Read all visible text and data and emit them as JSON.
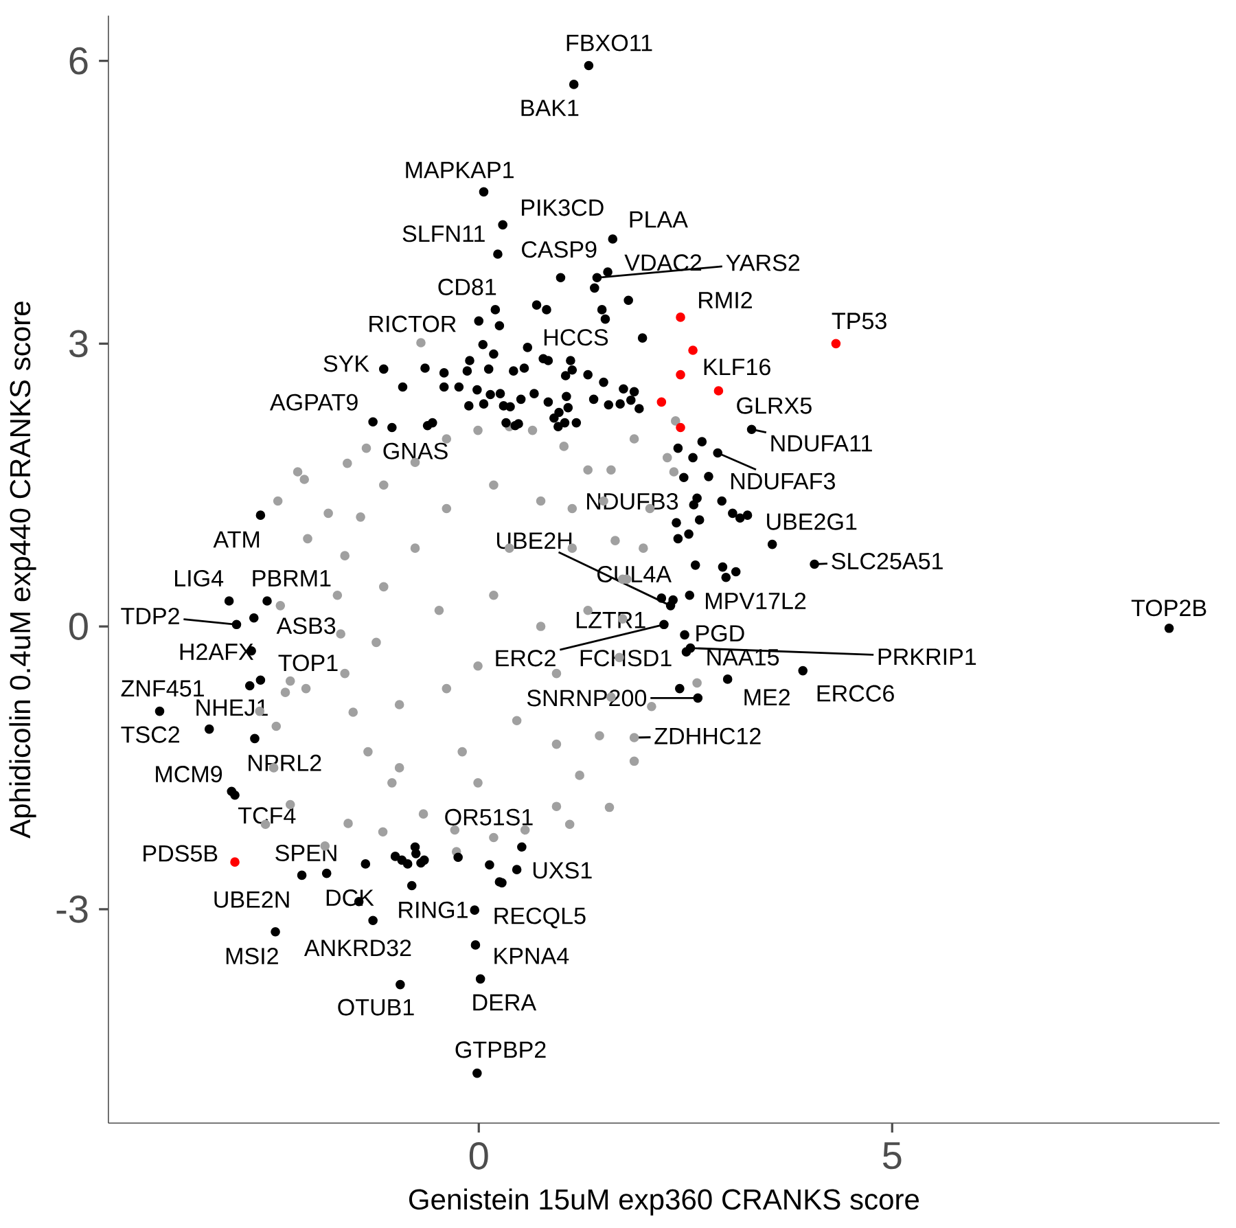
{
  "chart_data": {
    "type": "scatter",
    "xlabel": "Genistein 15uM exp360 CRANKS score",
    "ylabel": "Aphidicolin 0.4uM exp440 CRANKS score",
    "xlim": [
      -4.48,
      8.96
    ],
    "ylim": [
      -5.27,
      6.48
    ],
    "xticks": [
      0,
      5
    ],
    "yticks": [
      -3,
      0,
      3,
      6
    ],
    "marker": "circle",
    "series": [
      {
        "color": "#a0a0a0",
        "x": [
          -0.7,
          -1.36,
          -1.59,
          -2.19,
          -2.11,
          -2.07,
          -2.43,
          -1.82,
          -2.4,
          -2.28,
          -2.34,
          -2.09,
          -2.65,
          -2.45,
          -2.48,
          -2.28,
          -2.58,
          -1.86,
          -1.58,
          -1.16,
          1.1,
          1.58,
          1.88,
          1.88,
          2.09,
          2.64,
          2.36,
          2.28,
          2.38,
          1.88,
          1.6,
          2.07,
          1.99,
          1.79,
          -0.27,
          -0.01,
          -0.39,
          -0.77,
          -1.15,
          -1.43,
          -1.62,
          -1.71,
          -1.67,
          -1.62,
          -1.52,
          -1.34,
          -1.05,
          -0.67,
          -0.29,
          0.18,
          0.56,
          0.94,
          1.22,
          1.46,
          1.6,
          1.7,
          1.74,
          1.74,
          1.65,
          1.51,
          1.32,
          1.03,
          0.65,
          0.37,
          -0.77,
          -0.39,
          0.18,
          0.75,
          1.13,
          1.32,
          0.94,
          0.46,
          -0.2,
          -0.96,
          -1.24,
          -1.15,
          -0.48,
          0.18,
          0.75,
          -0.01,
          -0.39,
          0.37,
          -0.96,
          0.94,
          -0.01,
          1.13
        ],
        "values": [
          3.01,
          1.89,
          1.73,
          1.64,
          1.56,
          0.93,
          1.33,
          1.2,
          0.22,
          -0.58,
          -0.7,
          -0.66,
          -0.9,
          -1.06,
          -1.5,
          -1.89,
          -2.1,
          -2.33,
          -2.09,
          -2.18,
          -2.1,
          -1.92,
          -1.43,
          -1.18,
          -0.85,
          -0.6,
          1.64,
          1.79,
          2.18,
          1.99,
          1.66,
          1.25,
          0.83,
          0.5,
          -2.39,
          2.08,
          1.99,
          1.74,
          1.5,
          1.16,
          0.75,
          0.33,
          -0.08,
          -0.5,
          -0.91,
          -1.33,
          -1.66,
          -1.99,
          -2.16,
          -2.24,
          -2.16,
          -1.91,
          -1.58,
          -1.16,
          -0.75,
          -0.33,
          0.08,
          0.5,
          0.91,
          1.33,
          1.66,
          1.91,
          2.08,
          2.12,
          0.83,
          1.25,
          1.5,
          1.33,
          0.83,
          0.17,
          -0.5,
          -1.0,
          -1.33,
          -0.83,
          -0.17,
          0.42,
          0.17,
          0.33,
          0.0,
          -0.42,
          -0.66,
          0.83,
          -1.5,
          -1.25,
          -1.66,
          1.25
        ]
      },
      {
        "color": "#000000",
        "x": [
          1.33,
          1.15,
          0.06,
          0.29,
          0.23,
          1.62,
          1.56,
          1.43,
          1.4,
          0.99,
          1.49,
          1.53,
          1.81,
          0.7,
          0.82,
          0.2,
          0.0,
          0.25,
          1.98,
          0.59,
          0.05,
          0.18,
          -0.11,
          -0.65,
          -1.15,
          -0.92,
          -0.42,
          -0.14,
          0.12,
          0.42,
          0.55,
          0.78,
          0.84,
          1.11,
          1.13,
          1.05,
          1.32,
          1.51,
          1.75,
          1.88,
          -0.42,
          -0.24,
          -0.02,
          0.14,
          0.26,
          0.06,
          -0.12,
          0.3,
          0.38,
          0.51,
          0.67,
          0.84,
          1.06,
          1.08,
          0.97,
          1.04,
          0.96,
          0.91,
          0.33,
          0.44,
          0.48,
          -0.56,
          -0.62,
          -1.28,
          -1.05,
          1.39,
          1.57,
          1.71,
          1.84,
          1.94,
          1.18,
          2.41,
          2.7,
          2.89,
          2.59,
          2.48,
          2.78,
          2.64,
          2.94,
          2.6,
          3.07,
          3.16,
          3.25,
          2.67,
          2.39,
          2.54,
          2.41,
          3.55,
          2.62,
          2.95,
          3.11,
          2.99,
          4.06,
          2.55,
          2.35,
          2.32,
          2.21,
          2.24,
          2.49,
          2.56,
          2.51,
          3.01,
          2.43,
          2.65,
          3.92,
          -2.64,
          -3.02,
          -2.56,
          -2.72,
          -2.93,
          -2.75,
          -2.64,
          -2.77,
          -3.86,
          -3.26,
          -2.71,
          -2.99,
          -2.95,
          -2.14,
          -1.84,
          -1.37,
          -1.45,
          -1.28,
          -2.46,
          -1.01,
          -0.93,
          -0.86,
          -0.76,
          -0.7,
          -0.66,
          -0.81,
          -0.77,
          -0.25,
          0.13,
          0.25,
          0.28,
          0.46,
          0.52,
          -0.05,
          -0.04,
          0.02,
          -0.95,
          -0.02,
          8.35,
          3.3
        ],
        "values": [
          5.95,
          5.75,
          4.61,
          4.26,
          3.95,
          4.11,
          3.76,
          3.7,
          3.59,
          3.7,
          3.36,
          3.26,
          3.46,
          3.41,
          3.36,
          3.36,
          3.24,
          3.19,
          3.06,
          2.96,
          2.99,
          2.89,
          2.82,
          2.74,
          2.73,
          2.54,
          2.69,
          2.71,
          2.73,
          2.71,
          2.74,
          2.84,
          2.82,
          2.82,
          2.72,
          2.66,
          2.67,
          2.59,
          2.52,
          2.49,
          2.54,
          2.54,
          2.51,
          2.46,
          2.47,
          2.36,
          2.34,
          2.34,
          2.33,
          2.41,
          2.47,
          2.38,
          2.44,
          2.32,
          2.27,
          2.16,
          2.12,
          2.21,
          2.16,
          2.13,
          2.15,
          2.16,
          2.13,
          2.17,
          2.11,
          2.41,
          2.35,
          2.36,
          2.4,
          2.31,
          2.16,
          1.89,
          1.96,
          1.84,
          1.79,
          1.58,
          1.59,
          1.36,
          1.33,
          1.29,
          1.2,
          1.15,
          1.18,
          1.13,
          1.1,
          0.98,
          0.93,
          0.87,
          0.65,
          0.63,
          0.58,
          0.52,
          0.66,
          0.33,
          0.28,
          0.22,
          0.3,
          0.02,
          -0.09,
          -0.23,
          -0.27,
          -0.56,
          -0.66,
          -0.76,
          -0.47,
          1.18,
          0.27,
          0.27,
          0.09,
          0.02,
          -0.26,
          -0.57,
          -0.63,
          -0.9,
          -1.09,
          -1.19,
          -1.75,
          -1.79,
          -2.64,
          -2.62,
          -2.52,
          -2.92,
          -3.12,
          -3.24,
          -2.44,
          -2.48,
          -2.52,
          -2.41,
          -2.51,
          -2.48,
          -2.75,
          -2.34,
          -2.45,
          -2.53,
          -2.71,
          -2.72,
          -2.58,
          -2.34,
          -3.01,
          -3.38,
          -3.74,
          -3.8,
          -4.74,
          -0.02,
          2.09
        ]
      },
      {
        "color": "#ff0000",
        "x": [
          2.44,
          2.59,
          2.44,
          2.9,
          2.21,
          2.44,
          4.32,
          -2.95
        ],
        "values": [
          3.28,
          2.93,
          2.67,
          2.5,
          2.38,
          2.11,
          3.0,
          -2.5
        ]
      }
    ],
    "annotations": [
      {
        "text": "FBXO11",
        "x": 1.33,
        "y": 5.95
      },
      {
        "text": "BAK1",
        "x": 1.15,
        "y": 5.75
      },
      {
        "text": "MAPKAP1",
        "x": 0.06,
        "y": 4.61
      },
      {
        "text": "PIK3CD",
        "x": 0.29,
        "y": 4.26
      },
      {
        "text": "PLAA",
        "x": 1.62,
        "y": 4.11
      },
      {
        "text": "SLFN11",
        "x": 0.23,
        "y": 3.95
      },
      {
        "text": "CASP9",
        "x": 0.99,
        "y": 3.7
      },
      {
        "text": "VDAC2",
        "x": 1.56,
        "y": 3.76
      },
      {
        "text": "YARS2",
        "x": 1.43,
        "y": 3.7
      },
      {
        "text": "CD81",
        "x": 0.2,
        "y": 3.36
      },
      {
        "text": "RMI2",
        "x": 2.44,
        "y": 3.28
      },
      {
        "text": "RICTOR",
        "x": -0.7,
        "y": 3.01
      },
      {
        "text": "TP53",
        "x": 4.32,
        "y": 3.0
      },
      {
        "text": "HCCS",
        "x": 1.4,
        "y": 3.59
      },
      {
        "text": "SYK",
        "x": -1.15,
        "y": 2.73
      },
      {
        "text": "KLF16",
        "x": 2.44,
        "y": 2.67
      },
      {
        "text": "AGPAT9",
        "x": -1.28,
        "y": 2.17
      },
      {
        "text": "GLRX5",
        "x": 2.9,
        "y": 2.5
      },
      {
        "text": "NDUFA11",
        "x": 3.3,
        "y": 2.09
      },
      {
        "text": "GNAS",
        "x": -1.05,
        "y": 2.11
      },
      {
        "text": "NDUFAF3",
        "x": 2.89,
        "y": 1.84
      },
      {
        "text": "NDUFB3",
        "x": 2.64,
        "y": 1.36
      },
      {
        "text": "UBE2G1",
        "x": 3.55,
        "y": 0.87
      },
      {
        "text": "ATM",
        "x": -2.64,
        "y": 1.18
      },
      {
        "text": "UBE2H",
        "x": 2.32,
        "y": 0.22
      },
      {
        "text": "SLC25A51",
        "x": 4.06,
        "y": 0.66
      },
      {
        "text": "CUL4A",
        "x": 2.35,
        "y": 0.28
      },
      {
        "text": "LIG4",
        "x": -3.02,
        "y": 0.27
      },
      {
        "text": "PBRM1",
        "x": -2.56,
        "y": 0.27
      },
      {
        "text": "MPV17L2",
        "x": 2.55,
        "y": 0.33
      },
      {
        "text": "TOP2B",
        "x": 8.35,
        "y": -0.02
      },
      {
        "text": "TDP2",
        "x": -2.93,
        "y": 0.02
      },
      {
        "text": "ASB3",
        "x": -2.72,
        "y": 0.09
      },
      {
        "text": "LZTR1",
        "x": 2.21,
        "y": 0.3
      },
      {
        "text": "PGD",
        "x": 2.49,
        "y": -0.09
      },
      {
        "text": "H2AFX",
        "x": -2.75,
        "y": -0.26
      },
      {
        "text": "FCHSD1",
        "x": 2.43,
        "y": -0.66
      },
      {
        "text": "NAA15",
        "x": 2.51,
        "y": -0.27
      },
      {
        "text": "PRKRIP1",
        "x": 2.56,
        "y": -0.23
      },
      {
        "text": "ERC2",
        "x": 2.24,
        "y": 0.02
      },
      {
        "text": "TOP1",
        "x": -2.64,
        "y": -0.57
      },
      {
        "text": "ZNF451",
        "x": -3.86,
        "y": -0.9
      },
      {
        "text": "ME2",
        "x": 3.01,
        "y": -0.56
      },
      {
        "text": "ERCC6",
        "x": 3.92,
        "y": -0.47
      },
      {
        "text": "SNRNP200",
        "x": 2.65,
        "y": -0.76
      },
      {
        "text": "NHEJ1",
        "x": -2.77,
        "y": -0.63
      },
      {
        "text": "TSC2",
        "x": -3.26,
        "y": -1.09
      },
      {
        "text": "ZDHHC12",
        "x": 1.88,
        "y": -1.18
      },
      {
        "text": "NPRL2",
        "x": -2.71,
        "y": -1.19
      },
      {
        "text": "MCM9",
        "x": -2.99,
        "y": -1.75
      },
      {
        "text": "TCF4",
        "x": -2.95,
        "y": -1.79
      },
      {
        "text": "OR51S1",
        "x": 0.52,
        "y": -2.34
      },
      {
        "text": "PDS5B",
        "x": -2.95,
        "y": -2.5
      },
      {
        "text": "SPEN",
        "x": -1.84,
        "y": -2.62
      },
      {
        "text": "UXS1",
        "x": 0.46,
        "y": -2.58
      },
      {
        "text": "UBE2N",
        "x": -2.14,
        "y": -2.64
      },
      {
        "text": "DCK",
        "x": -1.45,
        "y": -2.92
      },
      {
        "text": "RING1",
        "x": -0.81,
        "y": -2.75
      },
      {
        "text": "RECQL5",
        "x": -0.05,
        "y": -3.01
      },
      {
        "text": "ANKRD32",
        "x": -1.28,
        "y": -3.12
      },
      {
        "text": "MSI2",
        "x": -2.46,
        "y": -3.24
      },
      {
        "text": "KPNA4",
        "x": -0.04,
        "y": -3.38
      },
      {
        "text": "DERA",
        "x": 0.02,
        "y": -3.74
      },
      {
        "text": "OTUB1",
        "x": -0.95,
        "y": -3.8
      },
      {
        "text": "GTPBP2",
        "x": -0.02,
        "y": -4.74
      }
    ]
  }
}
